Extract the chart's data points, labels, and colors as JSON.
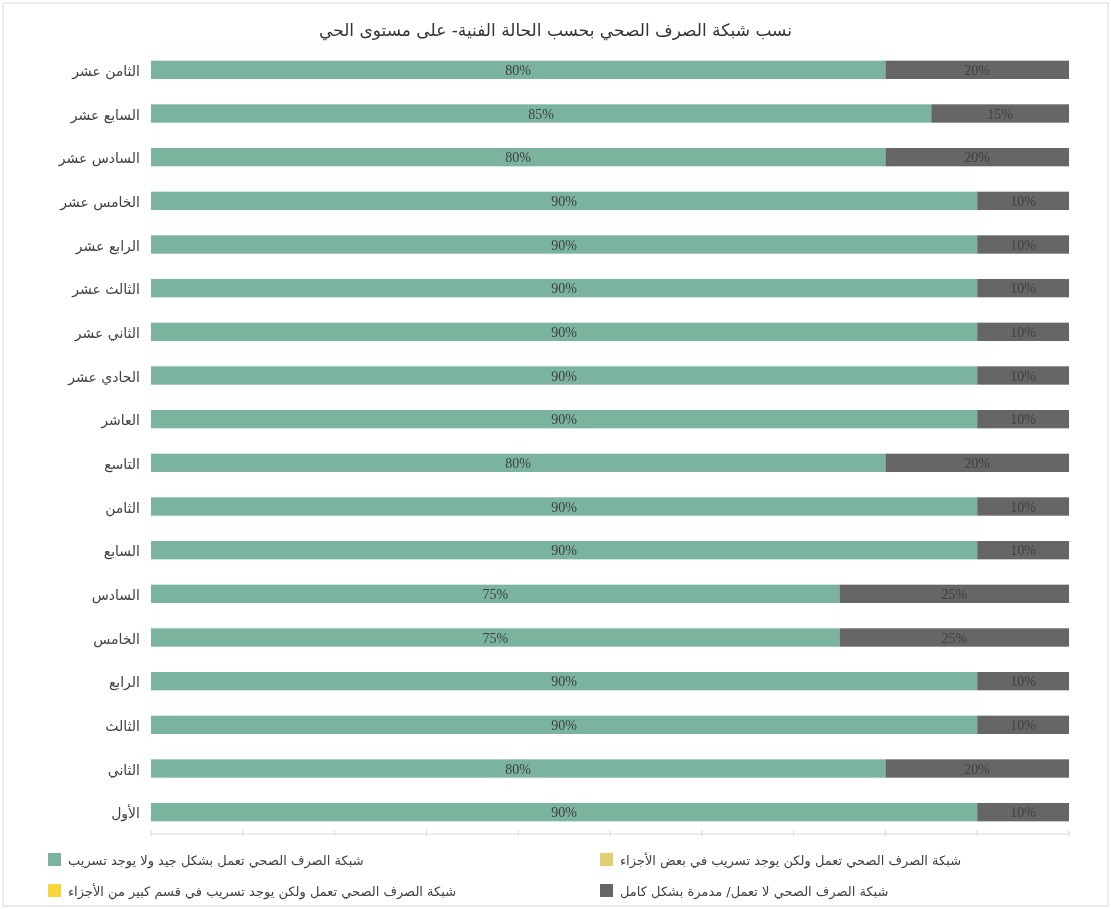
{
  "chart_data": {
    "type": "bar",
    "orientation": "horizontal",
    "stacked": true,
    "title": "نسب شبكة الصرف الصحي بحسب الحالة الفنية- على مستوى الحي",
    "categories": [
      "الثامن عشر",
      "السابع عشر",
      "السادس عشر",
      "الخامس عشر",
      "الرابع عشر",
      "الثالث عشر",
      "الثاني عشر",
      "الحادي عشر",
      "العاشر",
      "التاسع",
      "الثامن",
      "السابع",
      "السادس",
      "الخامس",
      "الرابع",
      "الثالث",
      "الثاني",
      "الأول"
    ],
    "series": [
      {
        "name": "شبكة الصرف الصحي تعمل بشكل جيد ولا يوجد تسريب",
        "color": "#7ab39e",
        "values": [
          80,
          85,
          80,
          90,
          90,
          90,
          90,
          90,
          90,
          80,
          90,
          90,
          75,
          75,
          90,
          90,
          80,
          90
        ],
        "value_labels": [
          "80%",
          "85%",
          "80%",
          "90%",
          "90%",
          "90%",
          "90%",
          "90%",
          "90%",
          "80%",
          "90%",
          "90%",
          "75%",
          "75%",
          "90%",
          "90%",
          "80%",
          "90%"
        ]
      },
      {
        "name": "شبكة الصرف الصحي تعمل ولكن يوجد تسريب في بعض الأجزاء",
        "color": "#e2cf73",
        "values": [
          0,
          0,
          0,
          0,
          0,
          0,
          0,
          0,
          0,
          0,
          0,
          0,
          0,
          0,
          0,
          0,
          0,
          0
        ]
      },
      {
        "name": "شبكة الصرف الصحي تعمل ولكن يوجد تسريب في قسم كبير من الأجزاء",
        "color": "#f6d73a",
        "values": [
          0,
          0,
          0,
          0,
          0,
          0,
          0,
          0,
          0,
          0,
          0,
          0,
          0,
          0,
          0,
          0,
          0,
          0
        ]
      },
      {
        "name": "شبكة الصرف الصحي لا تعمل/ مدمرة بشكل كامل",
        "color": "#666666",
        "values": [
          20,
          15,
          20,
          10,
          10,
          10,
          10,
          10,
          10,
          20,
          10,
          10,
          25,
          25,
          10,
          10,
          20,
          10
        ],
        "value_labels": [
          "20%",
          "15%",
          "20%",
          "10%",
          "10%",
          "10%",
          "10%",
          "10%",
          "10%",
          "20%",
          "10%",
          "10%",
          "25%",
          "25%",
          "10%",
          "10%",
          "20%",
          "10%"
        ]
      }
    ],
    "xlim": [
      0,
      100
    ],
    "xticks": [
      {
        "value": 0,
        "label": null
      },
      {
        "value": 10,
        "label": null
      },
      {
        "value": 20,
        "label": null
      },
      {
        "value": 30,
        "label": null
      },
      {
        "value": 40,
        "label": null
      },
      {
        "value": 50,
        "label": null
      },
      {
        "value": 60,
        "label": null
      },
      {
        "value": 70,
        "label": null
      },
      {
        "value": 80,
        "label": null
      },
      {
        "value": 90,
        "label": null
      },
      {
        "value": 100,
        "label": null
      }
    ],
    "tick_labels": "y",
    "legend": "bottom",
    "grid": false
  }
}
